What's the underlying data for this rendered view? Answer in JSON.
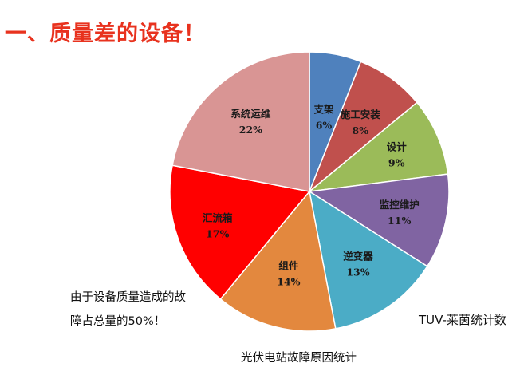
{
  "title": "一、质量差的设备！",
  "note_lines": [
    "由于设备质量造成的故",
    "障占总量的50%！"
  ],
  "source": "TUV-莱茵统计数",
  "caption": "光伏电站故障原因统计",
  "chart_data": {
    "type": "pie",
    "title": "",
    "start_angle_deg": 0,
    "direction": "clockwise",
    "slices": [
      {
        "label": "支架",
        "value": 6,
        "value_label": "6%",
        "color": "#4f81bd"
      },
      {
        "label": "施工安装",
        "value": 8,
        "value_label": "8%",
        "color": "#c0504d"
      },
      {
        "label": "设计",
        "value": 9,
        "value_label": "9%",
        "color": "#9bbb59"
      },
      {
        "label": "监控维护",
        "value": 11,
        "value_label": "11%",
        "color": "#8064a2"
      },
      {
        "label": "逆变器",
        "value": 13,
        "value_label": "13%",
        "color": "#4bacc6"
      },
      {
        "label": "组件",
        "value": 14,
        "value_label": "14%",
        "color": "#e3883e"
      },
      {
        "label": "汇流箱",
        "value": 17,
        "value_label": "17%",
        "color": "#ff0000"
      },
      {
        "label": "系统运维",
        "value": 22,
        "value_label": "22%",
        "color": "#d99594"
      }
    ]
  }
}
